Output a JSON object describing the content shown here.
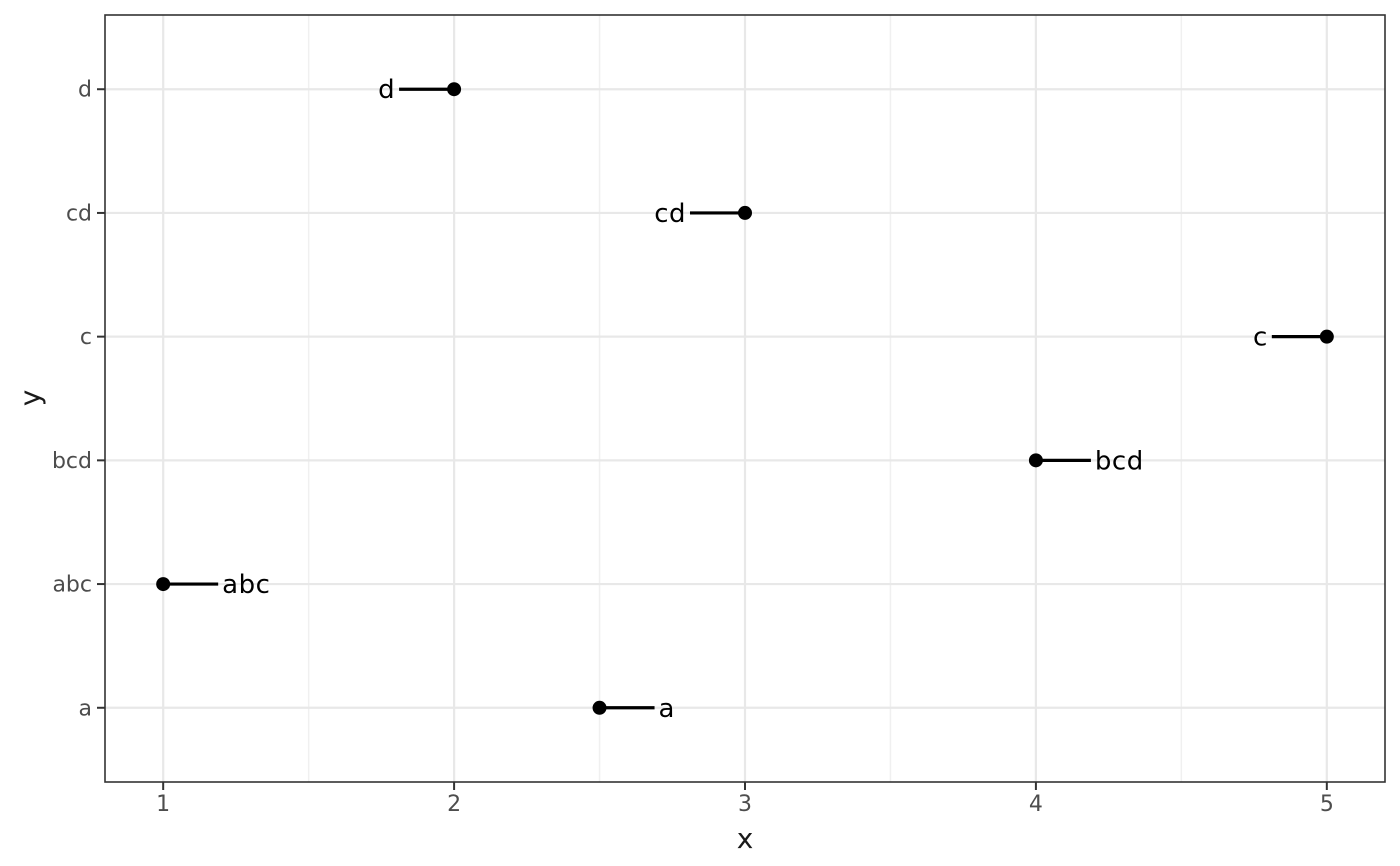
{
  "chart_data": {
    "type": "scatter",
    "title": "",
    "xlabel": "x",
    "ylabel": "y",
    "x_ticks": [
      1,
      2,
      3,
      4,
      5
    ],
    "x_minor_ticks": [
      1.5,
      2.5,
      3.5,
      4.5
    ],
    "xlim": [
      0.8,
      5.2
    ],
    "y_categories": [
      "a",
      "abc",
      "bcd",
      "c",
      "cd",
      "d"
    ],
    "ylim_units": [
      0.4,
      6.6
    ],
    "grid": "on",
    "legend": "none",
    "points": [
      {
        "x": 2,
        "y": "d",
        "label": "d",
        "label_side": "left"
      },
      {
        "x": 3,
        "y": "cd",
        "label": "cd",
        "label_side": "left"
      },
      {
        "x": 5,
        "y": "c",
        "label": "c",
        "label_side": "left"
      },
      {
        "x": 4,
        "y": "bcd",
        "label": "bcd",
        "label_side": "right"
      },
      {
        "x": 1,
        "y": "abc",
        "label": "abc",
        "label_side": "right"
      },
      {
        "x": 2.5,
        "y": "a",
        "label": "a",
        "label_side": "right"
      }
    ],
    "colors": {
      "point": "#000000",
      "leader_line": "#000000",
      "label_text": "#000000",
      "grid_major": "#e8e8e8",
      "grid_minor": "#f0f0f0",
      "panel_border": "#333333",
      "tick_mark": "#333333",
      "tick_label": "#4d4d4d",
      "axis_title": "#1a1a1a",
      "background": "#ffffff"
    }
  }
}
